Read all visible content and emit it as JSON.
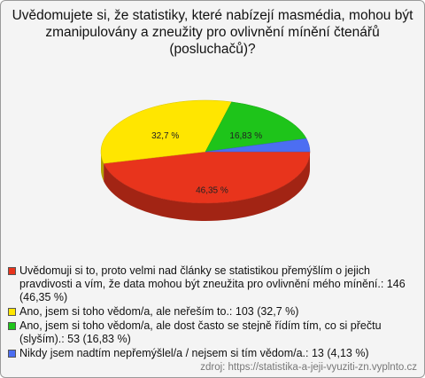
{
  "chart_data": {
    "type": "pie",
    "title": "Uvědomujete si, že statistiky, které nabízejí masmédia, mohou být zmanipulovány a zneužity pro ovlivnění mínění čtenářů (posluchačů)?",
    "categories": [
      "Uvědomuji si to, proto velmi nad články se statistikou přemýšlím o jejich pravdivosti a vím, že data mohou být zneužita pro ovlivnění mého mínění.: 146 (46,35 %)",
      "Ano, jsem si toho vědom/a, ale neřeším to.: 103 (32,7 %)",
      "Ano, jsem si toho vědom/a, ale dost často se stejně řídím tím, co si přečtu (slyším).: 53 (16,83 %)",
      "Nikdy jsem nadtím nepřemýšlel/a / nejsem si tím vědom/a.: 13 (4,13 %)"
    ],
    "values": [
      46.35,
      32.7,
      16.83,
      4.13
    ],
    "value_labels": [
      "46,35 %",
      "32,7 %",
      "16,83 %",
      null
    ],
    "colors": [
      "#e8341c",
      "#ffe600",
      "#1ec41a",
      "#4c6ef2"
    ],
    "source": "zdroj: https://statistika-a-jeji-vyuziti-zn.vyplnto.cz"
  }
}
